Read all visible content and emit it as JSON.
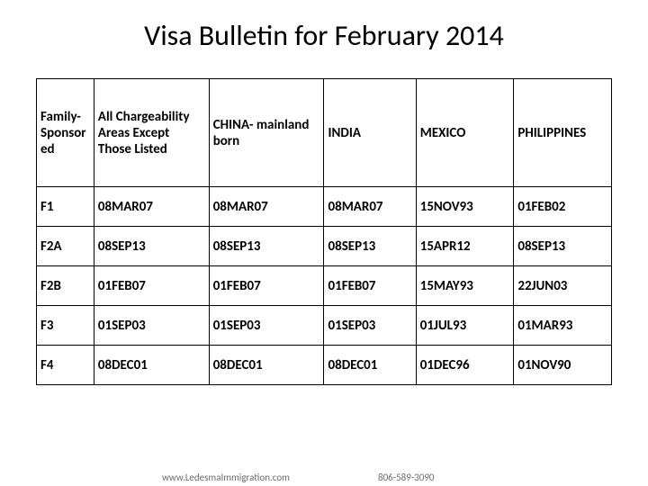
{
  "title": "Visa Bulletin for February 2014",
  "table": {
    "columns": [
      "Family- Sponsor ed",
      "All Chargeability Areas Except Those Listed",
      "CHINA- mainland born",
      "INDIA",
      "MEXICO",
      "PHILIPPINES"
    ],
    "colWidths": [
      "10%",
      "20%",
      "20%",
      "16%",
      "17%",
      "17%"
    ],
    "rows": [
      [
        "F1",
        "08MAR07",
        "08MAR07",
        "08MAR07",
        "15NOV93",
        "01FEB02"
      ],
      [
        "F2A",
        "08SEP13",
        "08SEP13",
        "08SEP13",
        "15APR12",
        "08SEP13"
      ],
      [
        "F2B",
        "01FEB07",
        "01FEB07",
        "01FEB07",
        "15MAY93",
        "22JUN03"
      ],
      [
        "F3",
        "01SEP03",
        "01SEP03",
        "01SEP03",
        "01JUL93",
        "01MAR93"
      ],
      [
        "F4",
        "08DEC01",
        "08DEC01",
        "08DEC01",
        "01DEC96",
        "01NOV90"
      ]
    ],
    "border_color": "#000000",
    "header_fontsize": 15,
    "cell_fontsize": 15,
    "font_weight": "bold",
    "background_color": "#ffffff"
  },
  "footer": {
    "left": "www.LedesmaImmigration.com",
    "right": "806-589-3090"
  }
}
